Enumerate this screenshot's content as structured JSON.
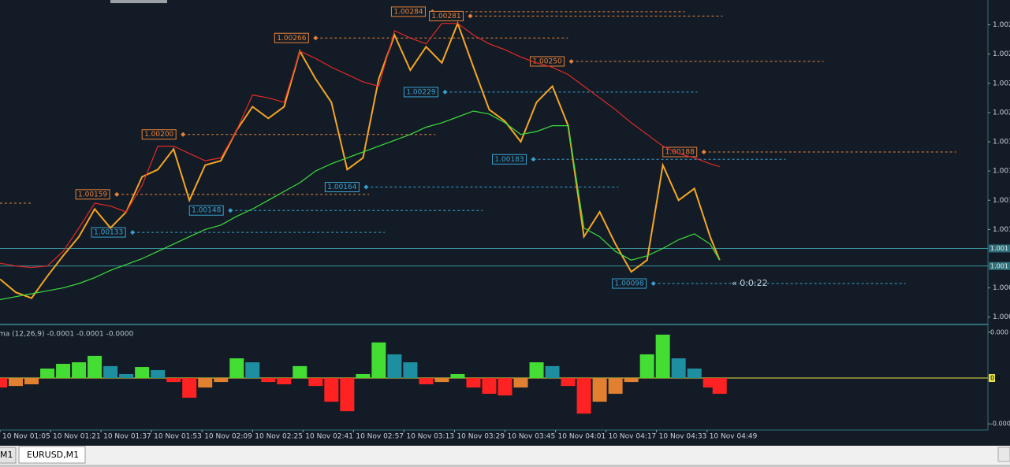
{
  "chart_data": [
    {
      "type": "line",
      "x": [
        "10 Nov 01:05",
        "10 Nov 01:10",
        "10 Nov 01:15",
        "10 Nov 01:20",
        "10 Nov 01:25",
        "10 Nov 01:30",
        "10 Nov 01:35",
        "10 Nov 01:40",
        "10 Nov 01:45",
        "10 Nov 01:50",
        "10 Nov 01:55",
        "10 Nov 02:00",
        "10 Nov 02:05",
        "10 Nov 02:10",
        "10 Nov 02:15",
        "10 Nov 02:20",
        "10 Nov 02:25",
        "10 Nov 02:30",
        "10 Nov 02:35",
        "10 Nov 02:40",
        "10 Nov 02:45",
        "10 Nov 02:50",
        "10 Nov 02:55",
        "10 Nov 03:00",
        "10 Nov 03:05",
        "10 Nov 03:10",
        "10 Nov 03:15",
        "10 Nov 03:20",
        "10 Nov 03:25",
        "10 Nov 03:30",
        "10 Nov 03:35",
        "10 Nov 03:40",
        "10 Nov 03:45",
        "10 Nov 03:50",
        "10 Nov 03:55",
        "10 Nov 04:00",
        "10 Nov 04:05",
        "10 Nov 04:10",
        "10 Nov 04:15",
        "10 Nov 04:20",
        "10 Nov 04:25",
        "10 Nov 04:30",
        "10 Nov 04:35",
        "10 Nov 04:40",
        "10 Nov 04:45",
        "10 Nov 04:50",
        "10 Nov 04:53"
      ],
      "series": [
        {
          "color": "#f5a623",
          "values": [
            1.00101,
            1.00092,
            1.00088,
            1.00103,
            1.00117,
            1.0013,
            1.00149,
            1.00136,
            1.00147,
            1.00171,
            1.00176,
            1.0019,
            1.00155,
            1.00179,
            1.00182,
            1.00203,
            1.00219,
            1.00211,
            1.00219,
            1.00257,
            1.00238,
            1.00222,
            1.00176,
            1.00184,
            1.00238,
            1.00268,
            1.00244,
            1.0026,
            1.00249,
            1.00276,
            1.00246,
            1.00217,
            1.00209,
            1.00195,
            1.00222,
            1.00233,
            1.00206,
            1.0013,
            1.00147,
            1.00125,
            1.00106,
            1.00114,
            1.00179,
            1.00155,
            1.00163,
            1.0013,
            1.00114
          ]
        },
        {
          "color": "#e02828",
          "values": [
            1.00112,
            1.0011,
            1.00109,
            1.0011,
            1.0012,
            1.00136,
            1.00153,
            1.00151,
            1.00147,
            1.00165,
            1.00192,
            1.00192,
            1.00187,
            1.00182,
            1.00184,
            1.00203,
            1.00227,
            1.00225,
            1.00222,
            1.00257,
            1.00252,
            1.00246,
            1.00241,
            1.00236,
            1.00233,
            1.00271,
            1.00266,
            1.00262,
            1.00276,
            1.00276,
            1.00268,
            1.00262,
            1.00258,
            1.00253,
            1.00249,
            1.00246,
            1.00241,
            1.00233,
            1.00225,
            1.00217,
            1.00208,
            1.002,
            1.00192,
            1.00187,
            1.00184,
            1.0018,
            1.00178
          ]
        },
        {
          "color": "#3cdc3c",
          "values": [
            1.00087,
            1.00089,
            1.00091,
            1.00093,
            1.00095,
            1.00098,
            1.00102,
            1.00107,
            1.00111,
            1.00115,
            1.0012,
            1.00125,
            1.0013,
            1.00135,
            1.00138,
            1.00144,
            1.00149,
            1.00155,
            1.00161,
            1.00167,
            1.00175,
            1.0018,
            1.00184,
            1.00188,
            1.00192,
            1.00196,
            1.002,
            1.00205,
            1.00208,
            1.00212,
            1.00216,
            1.00214,
            1.00208,
            1.002,
            1.00202,
            1.00206,
            1.00206,
            1.00136,
            1.0013,
            1.0012,
            1.00114,
            1.00117,
            1.00122,
            1.00128,
            1.00132,
            1.00125,
            1.00114
          ]
        }
      ],
      "xlim": [
        "10 Nov 01:05",
        "10 Nov 06:18"
      ],
      "xticks": [
        "10 Nov 01:05",
        "10 Nov 01:21",
        "10 Nov 01:37",
        "10 Nov 01:53",
        "10 Nov 02:09",
        "10 Nov 02:25",
        "10 Nov 02:41",
        "10 Nov 02:57",
        "10 Nov 03:13",
        "10 Nov 03:29",
        "10 Nov 03:45",
        "10 Nov 04:01",
        "10 Nov 04:17",
        "10 Nov 04:33",
        "10 Nov 04:49"
      ],
      "ylim": [
        1.0007,
        1.00292
      ],
      "yticks": [
        {
          "value": 1.00275,
          "label": "1.002"
        },
        {
          "value": 1.00255,
          "label": "1.002"
        },
        {
          "value": 1.00235,
          "label": "1.002"
        },
        {
          "value": 1.00215,
          "label": "1.002"
        },
        {
          "value": 1.00195,
          "label": "1.001"
        },
        {
          "value": 1.00175,
          "label": "1.001"
        },
        {
          "value": 1.00155,
          "label": "1.001"
        },
        {
          "value": 1.00135,
          "label": "1.001"
        },
        {
          "value": 1.00095,
          "label": "1.000"
        },
        {
          "value": 1.00075,
          "label": "1.000"
        }
      ],
      "levels": [
        {
          "value": 1.00284,
          "label": "1.00284",
          "time": "10 Nov 03:22",
          "color": "#e8823a"
        },
        {
          "value": 1.00281,
          "label": "1.00281",
          "time": "10 Nov 03:34",
          "color": "#e8823a"
        },
        {
          "value": 1.00266,
          "label": "1.00266",
          "time": "10 Nov 02:45",
          "color": "#e8823a"
        },
        {
          "value": 1.0025,
          "label": "1.00250",
          "time": "10 Nov 04:06",
          "color": "#e8823a"
        },
        {
          "value": 1.00229,
          "label": "1.00229",
          "time": "10 Nov 03:26",
          "color": "#3aa0d0"
        },
        {
          "value": 1.002,
          "label": "1.00200",
          "time": "10 Nov 02:03",
          "color": "#e8823a"
        },
        {
          "value": 1.00188,
          "label": "1.00188",
          "time": "10 Nov 04:48",
          "color": "#e8823a"
        },
        {
          "value": 1.00183,
          "label": "1.00183",
          "time": "10 Nov 03:54",
          "color": "#3aa0d0"
        },
        {
          "value": 1.00164,
          "label": "1.00164",
          "time": "10 Nov 03:01",
          "color": "#3aa0d0"
        },
        {
          "value": 1.00159,
          "label": "1.00159",
          "time": "10 Nov 01:42",
          "color": "#e8823a"
        },
        {
          "value": 1.00148,
          "label": "1.00148",
          "time": "10 Nov 02:18",
          "color": "#3aa0d0"
        },
        {
          "value": 1.00133,
          "label": "1.00133",
          "time": "10 Nov 01:47",
          "color": "#3aa0d0"
        },
        {
          "value": 1.00098,
          "label": "1.00098",
          "time": "10 Nov 04:32",
          "color": "#3aa0d0"
        }
      ],
      "price_lines": [
        {
          "value": 1.00122,
          "label": "1.001"
        },
        {
          "value": 1.0011,
          "label": "1.001"
        }
      ],
      "countdown": "« 0:0:22"
    },
    {
      "type": "bar",
      "title": "ma (12,26,9) -0.0001 -0.0001 -0.0000",
      "values": [
        -6.2e-05,
        -5.2e-05,
        -4.1e-05,
        6.2e-05,
        9.3e-05,
        0.000103,
        0.000145,
        7.8e-05,
        2.6e-05,
        7.2e-05,
        5.2e-05,
        -2.6e-05,
        -0.000129,
        -6.2e-05,
        -2.6e-05,
        0.000129,
        0.000103,
        -2.6e-05,
        -4.1e-05,
        7.8e-05,
        -5.2e-05,
        -0.000155,
        -0.000217,
        2.6e-05,
        0.000233,
        0.000155,
        0.000103,
        -4.1e-05,
        -2.6e-05,
        2.6e-05,
        -6.2e-05,
        -0.000103,
        -0.000114,
        -6.2e-05,
        0.000103,
        7.8e-05,
        -5.2e-05,
        -0.000233,
        -0.000155,
        -0.000103,
        -2.6e-05,
        0.000155,
        0.000284,
        0.000129,
        6.2e-05,
        -6.2e-05,
        -0.000103
      ],
      "colors": [
        "#44dd33",
        "#1e8fa0",
        "#ff2222",
        "#e08030"
      ],
      "ylim": [
        -0.00034,
        0.00033
      ],
      "yticks": [
        {
          "value": 0.0003,
          "label": "0.000"
        },
        {
          "value": 0,
          "label": "0.0"
        },
        {
          "value": -0.0003,
          "label": "-0.000"
        }
      ]
    }
  ],
  "tabs": [
    "M1",
    "EURUSD,M1"
  ]
}
